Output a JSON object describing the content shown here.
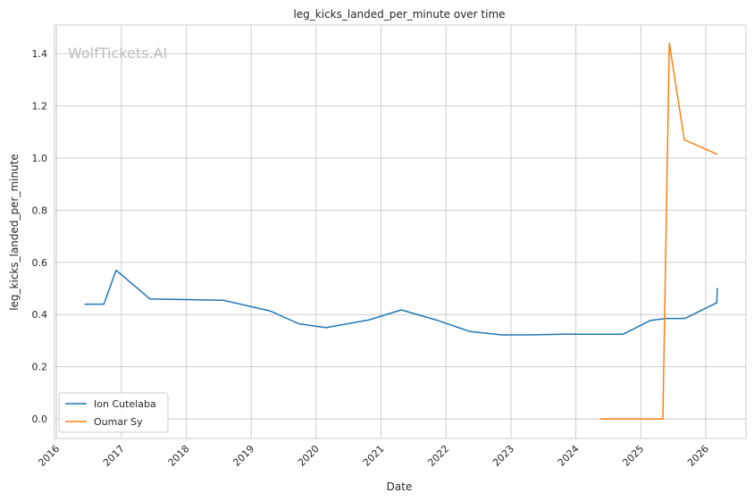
{
  "chart_data": {
    "type": "line",
    "title": "leg_kicks_landed_per_minute over time",
    "xlabel": "Date",
    "ylabel": "leg_kicks_landed_per_minute",
    "watermark": "WolfTickets.AI",
    "xlim": [
      2015.97,
      2026.62
    ],
    "ylim": [
      -0.075,
      1.51
    ],
    "x_ticks": [
      2016,
      2017,
      2018,
      2019,
      2020,
      2021,
      2022,
      2023,
      2024,
      2025,
      2026
    ],
    "x_tick_labels": [
      "2016",
      "2017",
      "2018",
      "2019",
      "2020",
      "2021",
      "2022",
      "2023",
      "2024",
      "2025",
      "2026"
    ],
    "y_ticks": [
      0.0,
      0.2,
      0.4,
      0.6,
      0.8,
      1.0,
      1.2,
      1.4
    ],
    "y_tick_labels": [
      "0.0",
      "0.2",
      "0.4",
      "0.6",
      "0.8",
      "1.0",
      "1.2",
      "1.4"
    ],
    "grid": true,
    "legend_position": "lower-left",
    "series": [
      {
        "name": "Ion Cutelaba",
        "color": "#1f77b4",
        "x": [
          2016.44,
          2016.73,
          2016.92,
          2017.44,
          2018.57,
          2019.3,
          2019.73,
          2020.15,
          2020.82,
          2021.31,
          2021.84,
          2022.37,
          2022.86,
          2023.25,
          2023.82,
          2024.73,
          2025.15,
          2025.4,
          2025.68,
          2026.17,
          2026.18
        ],
        "y": [
          0.44,
          0.44,
          0.57,
          0.46,
          0.455,
          0.413,
          0.365,
          0.35,
          0.38,
          0.418,
          0.38,
          0.335,
          0.322,
          0.322,
          0.325,
          0.325,
          0.378,
          0.385,
          0.385,
          0.445,
          0.5
        ]
      },
      {
        "name": "Oumar Sy",
        "color": "#ff7f0e",
        "x": [
          2024.38,
          2025.34,
          2025.44,
          2025.67,
          2026.17
        ],
        "y": [
          0.0,
          0.0,
          1.44,
          1.07,
          1.015
        ]
      }
    ]
  }
}
